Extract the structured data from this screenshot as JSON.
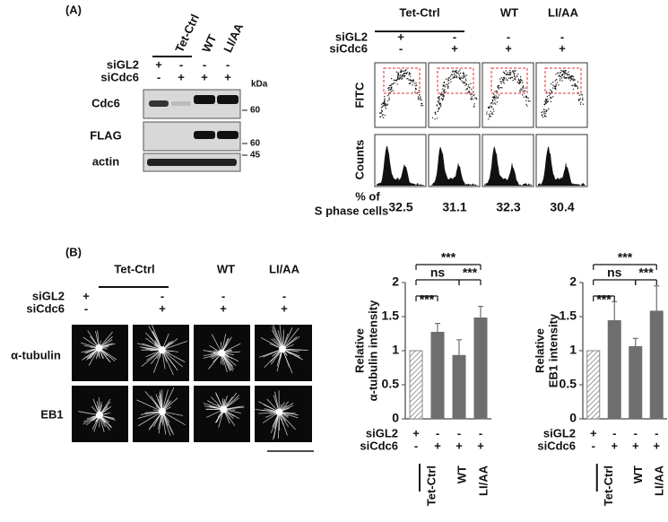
{
  "panel_a": {
    "label": "(A)",
    "blot": {
      "groups": [
        "Tet-Ctrl",
        "WT",
        "LI/AA"
      ],
      "rows": [
        {
          "name": "siGL2",
          "signs": [
            "+",
            "-",
            "-",
            "-"
          ]
        },
        {
          "name": "siCdc6",
          "signs": [
            "-",
            "+",
            "+",
            "+"
          ]
        }
      ],
      "unit": "kDa",
      "bands": [
        {
          "name": "Cdc6",
          "marker": "60"
        },
        {
          "name": "FLAG",
          "marker": "60"
        },
        {
          "name": "actin",
          "marker": "45"
        }
      ]
    },
    "flow": {
      "groups": [
        "Tet-Ctrl",
        "WT",
        "LI/AA"
      ],
      "rows": [
        {
          "name": "siGL2",
          "signs": [
            "+",
            "-",
            "-",
            "-"
          ]
        },
        {
          "name": "siCdc6",
          "signs": [
            "-",
            "+",
            "+",
            "+"
          ]
        }
      ],
      "plots": [
        "FITC",
        "Counts"
      ],
      "result_label": [
        "% of",
        "S phase cells"
      ],
      "results": [
        32.5,
        31.1,
        32.3,
        30.4
      ]
    }
  },
  "panel_b": {
    "label": "(B)",
    "groups": [
      "Tet-Ctrl",
      "WT",
      "LI/AA"
    ],
    "rows": [
      {
        "name": "siGL2",
        "signs": [
          "+",
          "-",
          "-",
          "-"
        ]
      },
      {
        "name": "siCdc6",
        "signs": [
          "-",
          "+",
          "+",
          "+"
        ]
      }
    ],
    "stains": [
      "α-tubulin",
      "EB1"
    ]
  },
  "chart_data": [
    {
      "type": "bar",
      "ylabel": [
        "Relative",
        "α-tubulin intensity"
      ],
      "values": [
        1,
        1.27,
        0.93,
        1.48
      ],
      "errors": [
        0,
        0.13,
        0.23,
        0.17
      ],
      "hatch": [
        true,
        false,
        false,
        false
      ],
      "color": "#6e6e6e",
      "ylim": [
        0,
        2
      ],
      "yticks": [
        0,
        0.5,
        1,
        1.5,
        2
      ],
      "annotations": [
        "***",
        "ns",
        "***",
        "***"
      ],
      "rows": [
        {
          "name": "siGL2",
          "signs": [
            "+",
            "-",
            "-",
            "-"
          ]
        },
        {
          "name": "siCdc6",
          "signs": [
            "-",
            "+",
            "+",
            "+"
          ]
        }
      ],
      "groups": [
        "Tet-Ctrl",
        "WT",
        "LI/AA"
      ]
    },
    {
      "type": "bar",
      "ylabel": [
        "Relative",
        "EB1 intensity"
      ],
      "values": [
        1,
        1.44,
        1.06,
        1.58
      ],
      "errors": [
        0,
        0.28,
        0.12,
        0.37
      ],
      "hatch": [
        true,
        false,
        false,
        false
      ],
      "color": "#6e6e6e",
      "ylim": [
        0,
        2
      ],
      "yticks": [
        0,
        0.5,
        1,
        1.5,
        2
      ],
      "annotations": [
        "***",
        "ns",
        "***",
        "***"
      ],
      "rows": [
        {
          "name": "siGL2",
          "signs": [
            "+",
            "-",
            "-",
            "-"
          ]
        },
        {
          "name": "siCdc6",
          "signs": [
            "-",
            "+",
            "+",
            "+"
          ]
        }
      ],
      "groups": [
        "Tet-Ctrl",
        "WT",
        "LI/AA"
      ]
    }
  ]
}
